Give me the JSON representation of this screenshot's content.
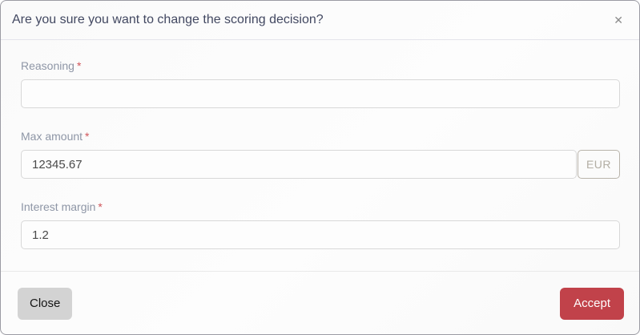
{
  "modal": {
    "title": "Are you sure you want to change the scoring decision?",
    "close_icon": "✕"
  },
  "form": {
    "fields": [
      {
        "label": "Reasoning",
        "required_marker": "*",
        "value": "",
        "suffix": ""
      },
      {
        "label": "Max amount",
        "required_marker": "*",
        "value": "12345.67",
        "suffix": "EUR"
      },
      {
        "label": "Interest margin",
        "required_marker": "*",
        "value": "1.2",
        "suffix": ""
      }
    ]
  },
  "footer": {
    "close_label": "Close",
    "accept_label": "Accept"
  },
  "colors": {
    "accent_red": "#c1424a",
    "title_navy": "#424861",
    "label_gray_blue": "#8e96a6",
    "required_red": "#d05459",
    "addon_tan": "#b9b4ab"
  }
}
